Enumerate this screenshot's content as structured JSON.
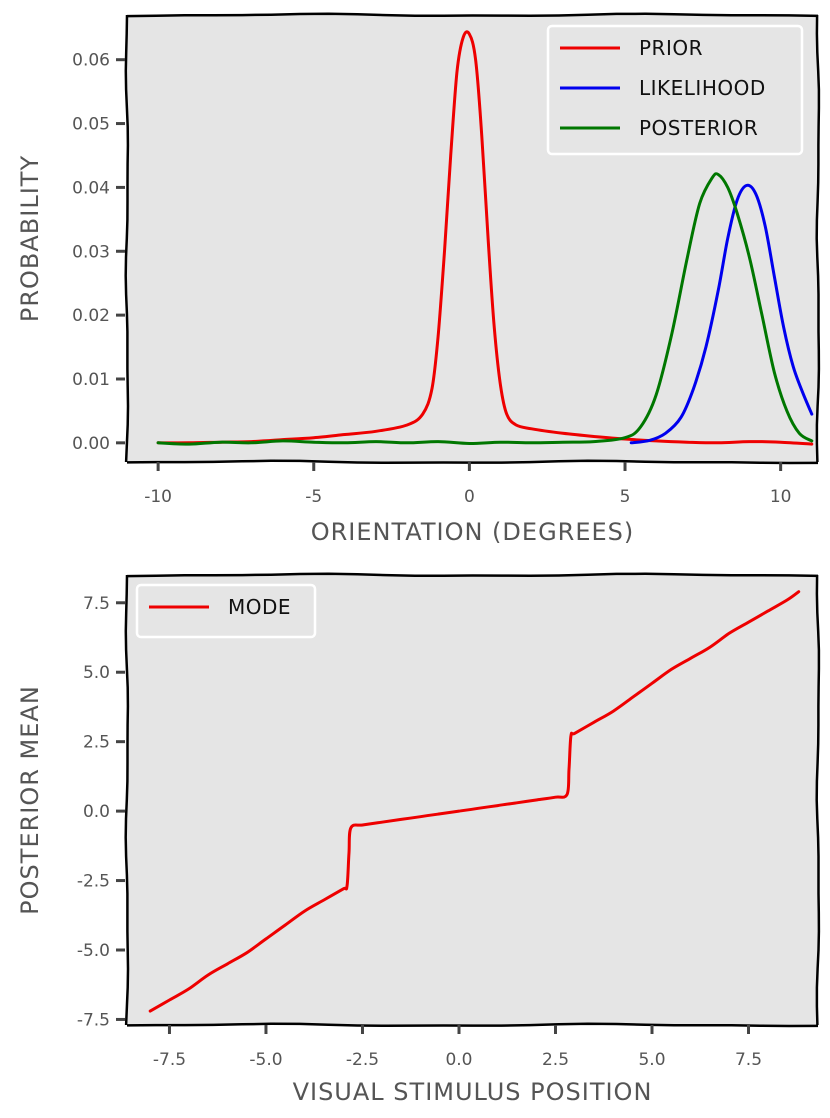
{
  "chart_data": [
    {
      "type": "line",
      "xlabel": "ORIENTATION (DEGREES)",
      "ylabel": "PROBABILITY",
      "xlim": [
        -11,
        11.2
      ],
      "ylim": [
        -0.003,
        0.067
      ],
      "xticks": [
        -10,
        -5,
        0,
        5,
        10
      ],
      "xtick_labels": [
        "-10",
        "-5",
        "0",
        "5",
        "10"
      ],
      "yticks": [
        0.0,
        0.01,
        0.02,
        0.03,
        0.04,
        0.05,
        0.06
      ],
      "ytick_labels": [
        "0.00",
        "0.01",
        "0.02",
        "0.03",
        "0.04",
        "0.05",
        "0.06"
      ],
      "legend": "top-right",
      "grid": false,
      "series": [
        {
          "name": "PRIOR",
          "color": "#ee0000",
          "x": [
            -10,
            -9,
            -8,
            -7,
            -6,
            -5,
            -4,
            -3,
            -2,
            -1.5,
            -1.2,
            -1.0,
            -0.8,
            -0.6,
            -0.4,
            -0.2,
            0,
            0.2,
            0.4,
            0.6,
            0.8,
            1.0,
            1.2,
            1.5,
            2,
            3,
            4,
            5,
            6,
            7,
            8,
            9,
            10,
            11
          ],
          "y": [
            0.0,
            0.0,
            0.0001,
            0.0002,
            0.0005,
            0.0008,
            0.0013,
            0.0018,
            0.0028,
            0.0045,
            0.0085,
            0.017,
            0.03,
            0.045,
            0.058,
            0.0635,
            0.064,
            0.06,
            0.048,
            0.032,
            0.018,
            0.009,
            0.0045,
            0.0028,
            0.0022,
            0.0015,
            0.001,
            0.0006,
            0.0003,
            0.0001,
            0.0,
            0.0002,
            0.0001,
            -0.0002
          ]
        },
        {
          "name": "LIKELIHOOD",
          "color": "#0000ee",
          "x": [
            5.2,
            5.8,
            6.3,
            6.8,
            7.2,
            7.6,
            8.0,
            8.3,
            8.6,
            8.9,
            9.2,
            9.5,
            9.8,
            10.1,
            10.4,
            10.7,
            11.0
          ],
          "y": [
            0.0,
            0.0004,
            0.0015,
            0.004,
            0.0085,
            0.015,
            0.024,
            0.032,
            0.038,
            0.0403,
            0.039,
            0.034,
            0.026,
            0.018,
            0.012,
            0.008,
            0.0045
          ]
        },
        {
          "name": "POSTERIOR",
          "color": "#007700",
          "x": [
            -10,
            -9,
            -8,
            -7,
            -6,
            -5,
            -4,
            -3,
            -2,
            -1,
            0,
            1,
            2,
            3,
            4,
            5,
            5.5,
            6.0,
            6.5,
            7.0,
            7.4,
            7.8,
            8.0,
            8.3,
            8.6,
            9.0,
            9.4,
            9.8,
            10.2,
            10.6,
            11.0
          ],
          "y": [
            0.0,
            -0.0002,
            0.0001,
            0.0,
            0.0003,
            0.0001,
            0.0,
            0.0002,
            0.0,
            0.0002,
            -0.0001,
            0.0001,
            0.0,
            0.0001,
            0.0002,
            0.0008,
            0.0025,
            0.0075,
            0.017,
            0.029,
            0.0375,
            0.0415,
            0.042,
            0.04,
            0.036,
            0.029,
            0.02,
            0.011,
            0.005,
            0.0015,
            0.0003
          ]
        }
      ]
    },
    {
      "type": "line",
      "xlabel": "VISUAL STIMULUS POSITION",
      "ylabel": "POSTERIOR MEAN",
      "xlim": [
        -8.6,
        9.3
      ],
      "ylim": [
        -7.7,
        8.5
      ],
      "xticks": [
        -7.5,
        -5.0,
        -2.5,
        0.0,
        2.5,
        5.0,
        7.5
      ],
      "xtick_labels": [
        "-7.5",
        "-5.0",
        "-2.5",
        "0.0",
        "2.5",
        "5.0",
        "7.5"
      ],
      "yticks": [
        -7.5,
        -5.0,
        -2.5,
        0.0,
        2.5,
        5.0,
        7.5
      ],
      "ytick_labels": [
        "-7.5",
        "-5.0",
        "-2.5",
        "0.0",
        "2.5",
        "5.0",
        "7.5"
      ],
      "legend": "top-left",
      "grid": false,
      "series": [
        {
          "name": "MODE",
          "color": "#ee0000",
          "x": [
            -8.0,
            -7.5,
            -7.0,
            -6.5,
            -6.0,
            -5.5,
            -5.0,
            -4.5,
            -4.0,
            -3.5,
            -3.0,
            -2.9,
            -2.85,
            -2.8,
            -2.5,
            -2.0,
            -1.5,
            -1.0,
            -0.5,
            0.0,
            0.5,
            1.0,
            1.5,
            2.0,
            2.5,
            2.8,
            2.85,
            2.9,
            3.0,
            3.5,
            4.0,
            4.5,
            5.0,
            5.5,
            6.0,
            6.5,
            7.0,
            7.5,
            8.0,
            8.5,
            8.8
          ],
          "y": [
            -7.2,
            -6.8,
            -6.4,
            -5.9,
            -5.5,
            -5.1,
            -4.6,
            -4.1,
            -3.6,
            -3.2,
            -2.8,
            -2.7,
            -1.5,
            -0.6,
            -0.5,
            -0.4,
            -0.3,
            -0.2,
            -0.1,
            0.0,
            0.1,
            0.2,
            0.3,
            0.4,
            0.5,
            0.6,
            1.5,
            2.7,
            2.8,
            3.2,
            3.6,
            4.1,
            4.6,
            5.1,
            5.5,
            5.9,
            6.4,
            6.8,
            7.2,
            7.6,
            7.9
          ]
        }
      ]
    }
  ]
}
